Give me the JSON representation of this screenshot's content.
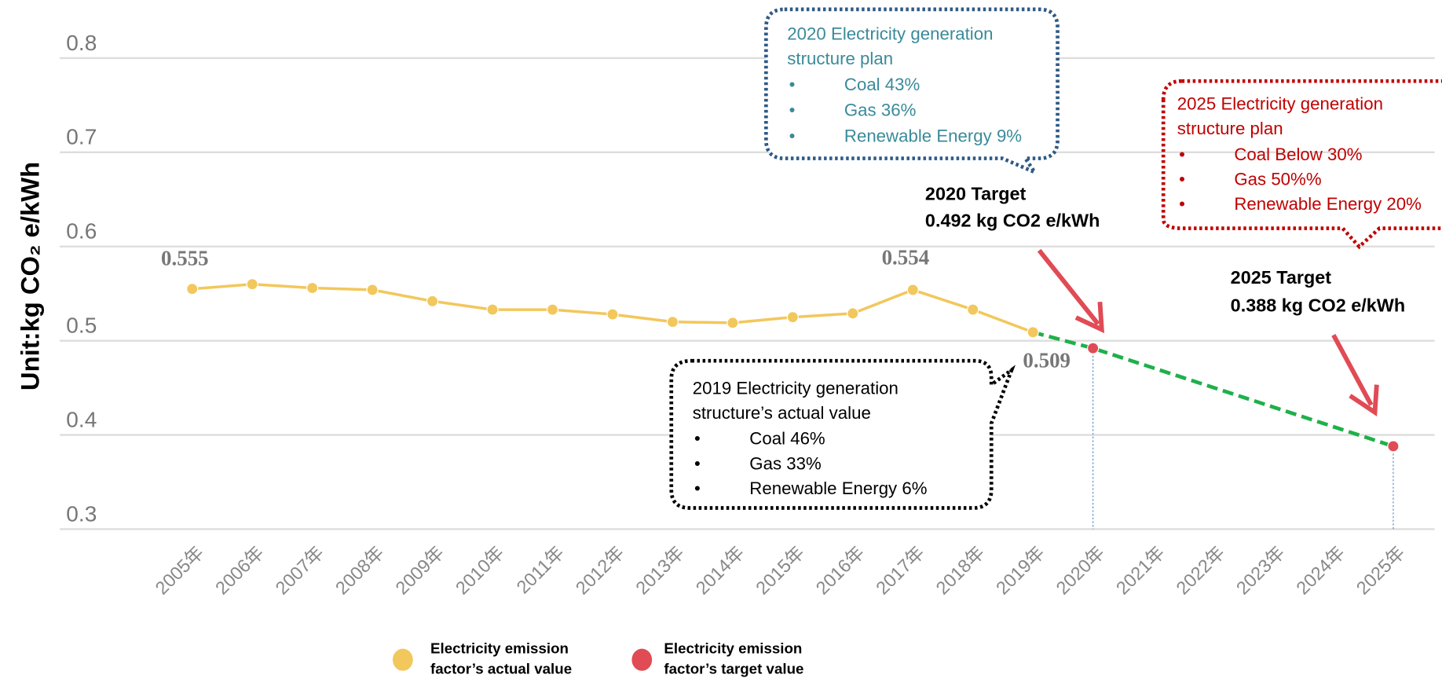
{
  "chart_data": {
    "type": "line",
    "y_label": "Unit:kg CO₂ e/kWh",
    "categories": [
      "2005年",
      "2006年",
      "2007年",
      "2008年",
      "2009年",
      "2010年",
      "2011年",
      "2012年",
      "2013年",
      "2014年",
      "2015年",
      "2016年",
      "2017年",
      "2018年",
      "2019年",
      "2020年",
      "2021年",
      "2022年",
      "2023年",
      "2024年",
      "2025年"
    ],
    "series": [
      {
        "name": "Electricity emission factor’s actual value",
        "color": "#f2c75c",
        "values": [
          0.555,
          0.56,
          0.556,
          0.554,
          0.542,
          0.533,
          0.533,
          0.528,
          0.52,
          0.519,
          0.525,
          0.529,
          0.554,
          0.533,
          0.509,
          null,
          null,
          null,
          null,
          null,
          null
        ]
      },
      {
        "name": "Electricity emission factor’s target value",
        "color": "#e04b55",
        "values": [
          null,
          null,
          null,
          null,
          null,
          null,
          null,
          null,
          null,
          null,
          null,
          null,
          null,
          null,
          null,
          0.492,
          null,
          null,
          null,
          null,
          0.388
        ]
      }
    ],
    "target_line_color": "#1fb04a",
    "ylim": [
      0.3,
      0.8
    ],
    "yticks": [
      0.3,
      0.4,
      0.5,
      0.6,
      0.7,
      0.8
    ],
    "grid": true,
    "legend": "bottom",
    "annotations": {
      "target_2020": {
        "title": "2020 Target",
        "value": "0.492 kg  CO2 e/kWh"
      },
      "target_2025": {
        "title": "2025 Target",
        "value": "0.388 kg  CO2 e/kWh"
      },
      "plan_2020": {
        "title": "2020 Electricity generation structure plan",
        "items": [
          "Coal 43%",
          "Gas  36%",
          "Renewable Energy 9%"
        ]
      },
      "plan_2025": {
        "title": "2025 Electricity generation structure plan",
        "items": [
          "Coal Below 30%",
          "Gas  50%%",
          "Renewable Energy 20%"
        ]
      },
      "actual_2019": {
        "title": "2019  Electricity generation structure’s actual value",
        "items": [
          "Coal 46%",
          "Gas  33%",
          "Renewable Energy 6%"
        ]
      }
    }
  }
}
